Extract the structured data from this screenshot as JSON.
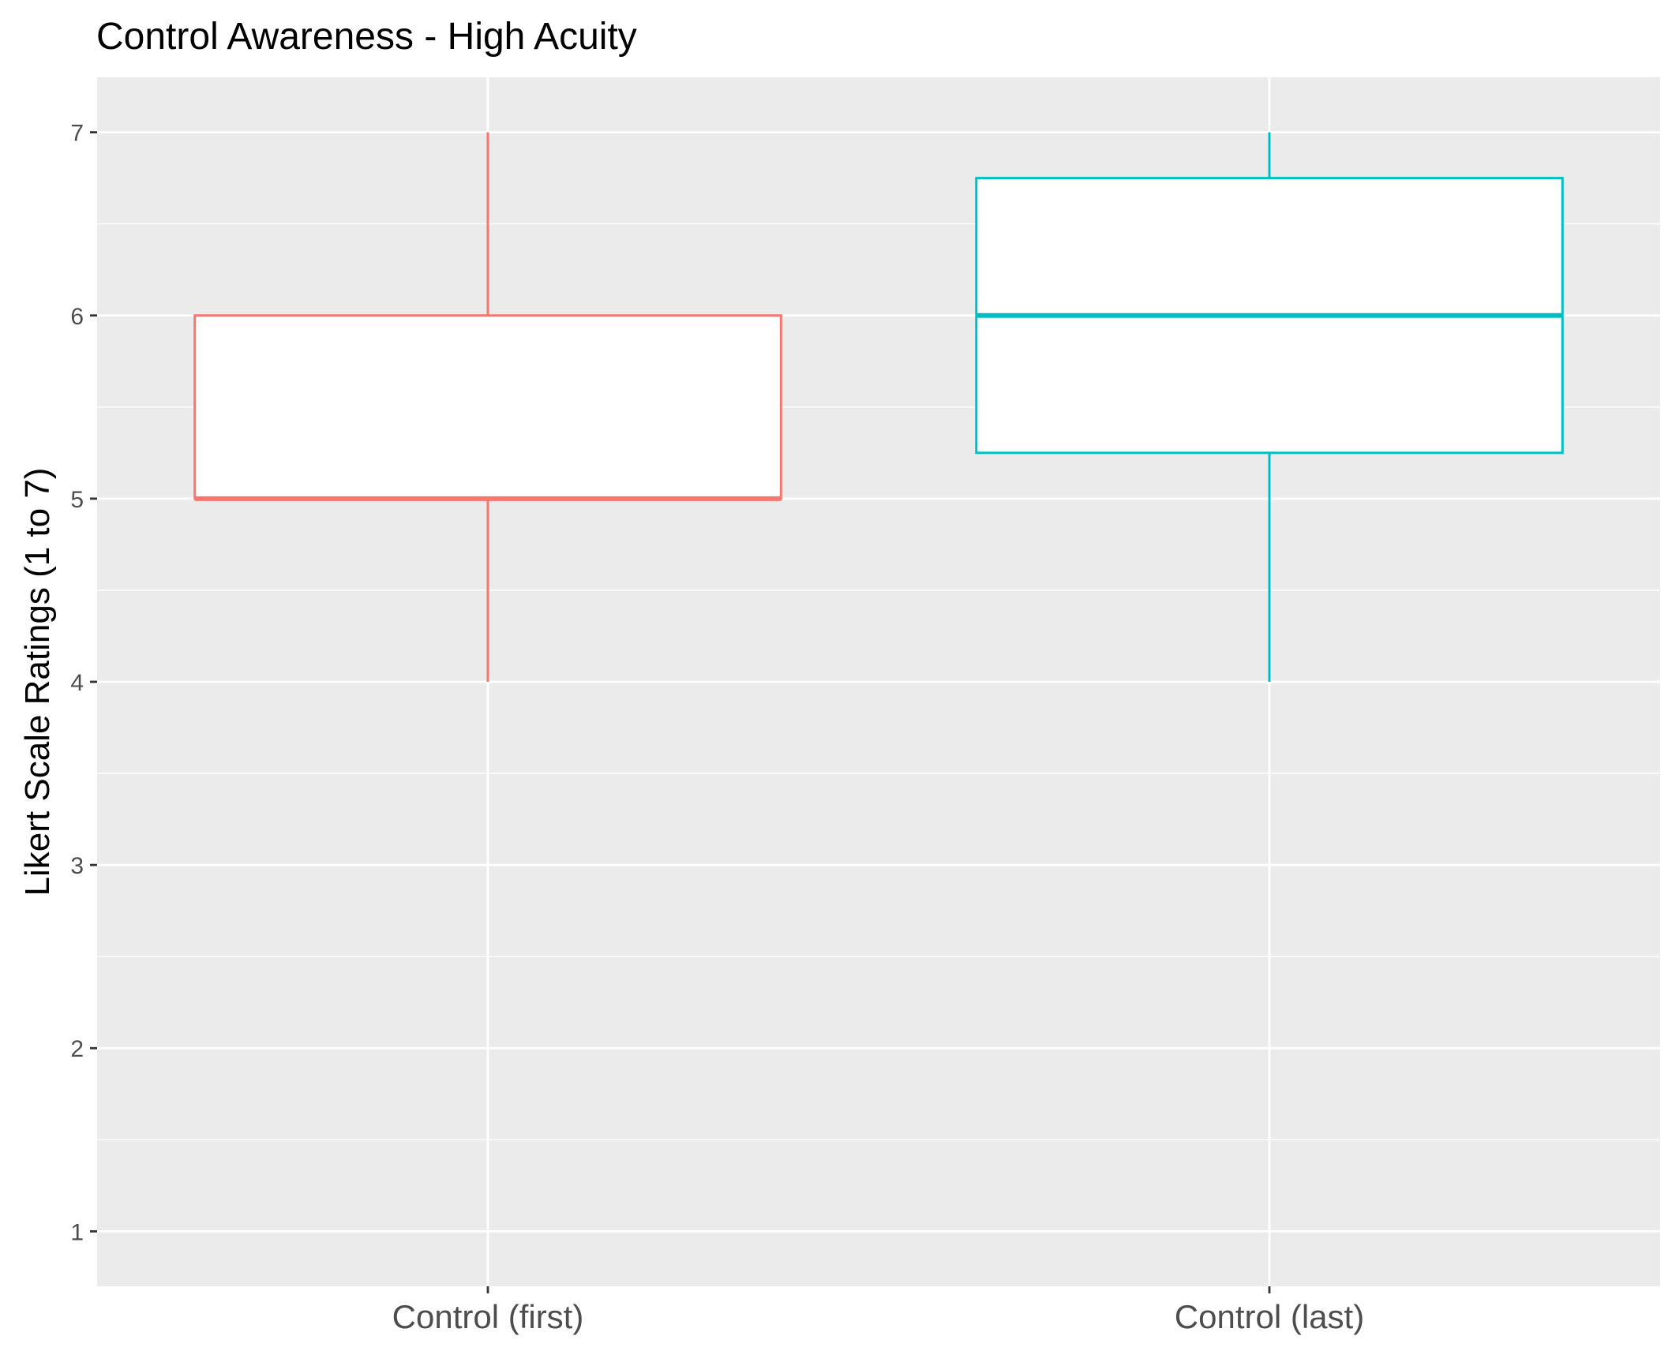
{
  "chart_data": {
    "type": "boxplot",
    "title": "Control Awareness - High Acuity",
    "xlabel": "",
    "ylabel": "Likert Scale Ratings (1 to 7)",
    "ylim": [
      0.7,
      7.3
    ],
    "yticks": [
      1,
      2,
      3,
      4,
      5,
      6,
      7
    ],
    "categories": [
      "Control (first)",
      "Control (last)"
    ],
    "boxes": [
      {
        "category": "Control (first)",
        "min": 4,
        "q1": 5,
        "median": 5,
        "q3": 6,
        "max": 7,
        "color": "#F8766D"
      },
      {
        "category": "Control (last)",
        "min": 4,
        "q1": 5.25,
        "median": 6,
        "q3": 6.75,
        "max": 7,
        "color": "#00BFC4"
      }
    ],
    "grid": true,
    "panel_background": "#EBEBEB",
    "box_fill": "#FFFFFF",
    "legend": "none"
  }
}
